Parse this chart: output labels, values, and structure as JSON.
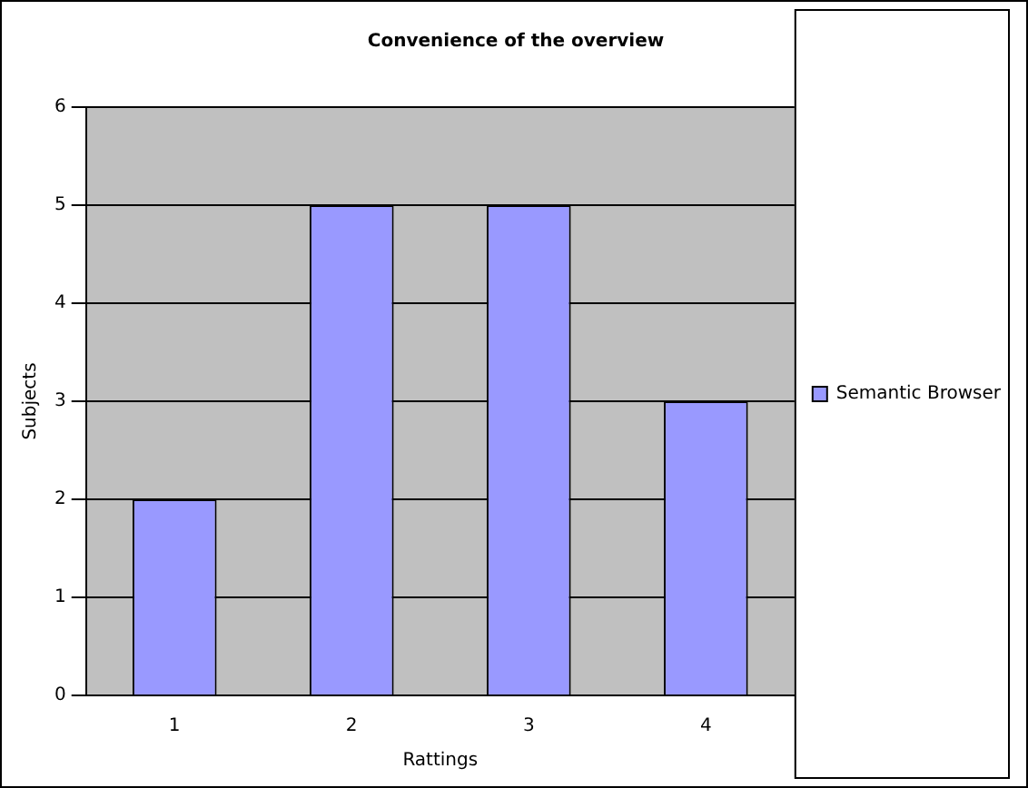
{
  "chart_data": {
    "type": "bar",
    "title": "Convenience of the overview",
    "xlabel": "Rattings",
    "ylabel": "Subjects",
    "categories": [
      "1",
      "2",
      "3",
      "4"
    ],
    "series": [
      {
        "name": "Semantic Browser",
        "color": "#9999ff",
        "values": [
          2,
          5,
          5,
          3
        ]
      }
    ],
    "ylim": [
      0,
      6
    ],
    "yticks": [
      0,
      1,
      2,
      3,
      4,
      5,
      6
    ],
    "grid": "y",
    "legend": "right"
  }
}
